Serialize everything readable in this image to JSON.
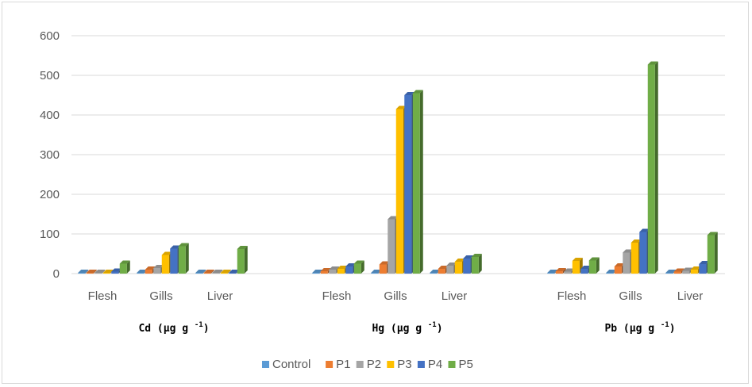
{
  "chart_data": {
    "type": "bar",
    "style": "3d-clustered-column",
    "ylim": [
      0,
      600
    ],
    "yticks": [
      0,
      100,
      200,
      300,
      400,
      500,
      600
    ],
    "grid": true,
    "legend_position": "bottom",
    "groups": [
      {
        "label": "Cd (µg g",
        "label_sup": "-1",
        "label_end": ")",
        "categories": [
          "Flesh",
          "Gills",
          "Liver"
        ],
        "series": [
          {
            "name": "Control",
            "values": [
              0.5,
              0.5,
              0.3
            ]
          },
          {
            "name": "P1",
            "values": [
              1,
              10,
              0.5
            ]
          },
          {
            "name": "P2",
            "values": [
              1,
              14,
              0.8
            ]
          },
          {
            "name": "P3",
            "values": [
              2,
              47,
              1
            ]
          },
          {
            "name": "P4",
            "values": [
              5,
              63,
              2
            ]
          },
          {
            "name": "P5",
            "values": [
              25,
              69,
              62
            ]
          }
        ]
      },
      {
        "label": "Hg  (µg g",
        "label_sup": "-1",
        "label_end": ")",
        "categories": [
          "Flesh",
          "Gills",
          "Liver"
        ],
        "series": [
          {
            "name": "Control",
            "values": [
              0.5,
              1,
              1
            ]
          },
          {
            "name": "P1",
            "values": [
              6,
              23,
              12
            ]
          },
          {
            "name": "P2",
            "values": [
              10,
              137,
              20
            ]
          },
          {
            "name": "P3",
            "values": [
              12,
              415,
              30
            ]
          },
          {
            "name": "P4",
            "values": [
              18,
              450,
              38
            ]
          },
          {
            "name": "P5",
            "values": [
              25,
              455,
              42
            ]
          }
        ]
      },
      {
        "label": "Pb  (µg g",
        "label_sup": "-1",
        "label_end": ")",
        "categories": [
          "Flesh",
          "Gills",
          "Liver"
        ],
        "series": [
          {
            "name": "Control",
            "values": [
              0.5,
              1,
              0.5
            ]
          },
          {
            "name": "P1",
            "values": [
              6,
              18,
              5
            ]
          },
          {
            "name": "P2",
            "values": [
              5,
              53,
              7
            ]
          },
          {
            "name": "P3",
            "values": [
              32,
              78,
              10
            ]
          },
          {
            "name": "P4",
            "values": [
              12,
              105,
              24
            ]
          },
          {
            "name": "P5",
            "values": [
              33,
              527,
              97
            ]
          }
        ]
      }
    ],
    "legend": [
      "Control",
      "P1",
      "P2",
      "P3",
      "P4",
      "P5"
    ],
    "colors": {
      "Control": "#5b9bd5",
      "P1": "#ed7d31",
      "P2": "#a5a5a5",
      "P3": "#ffc000",
      "P4": "#4472c4",
      "P5": "#70ad47"
    }
  }
}
